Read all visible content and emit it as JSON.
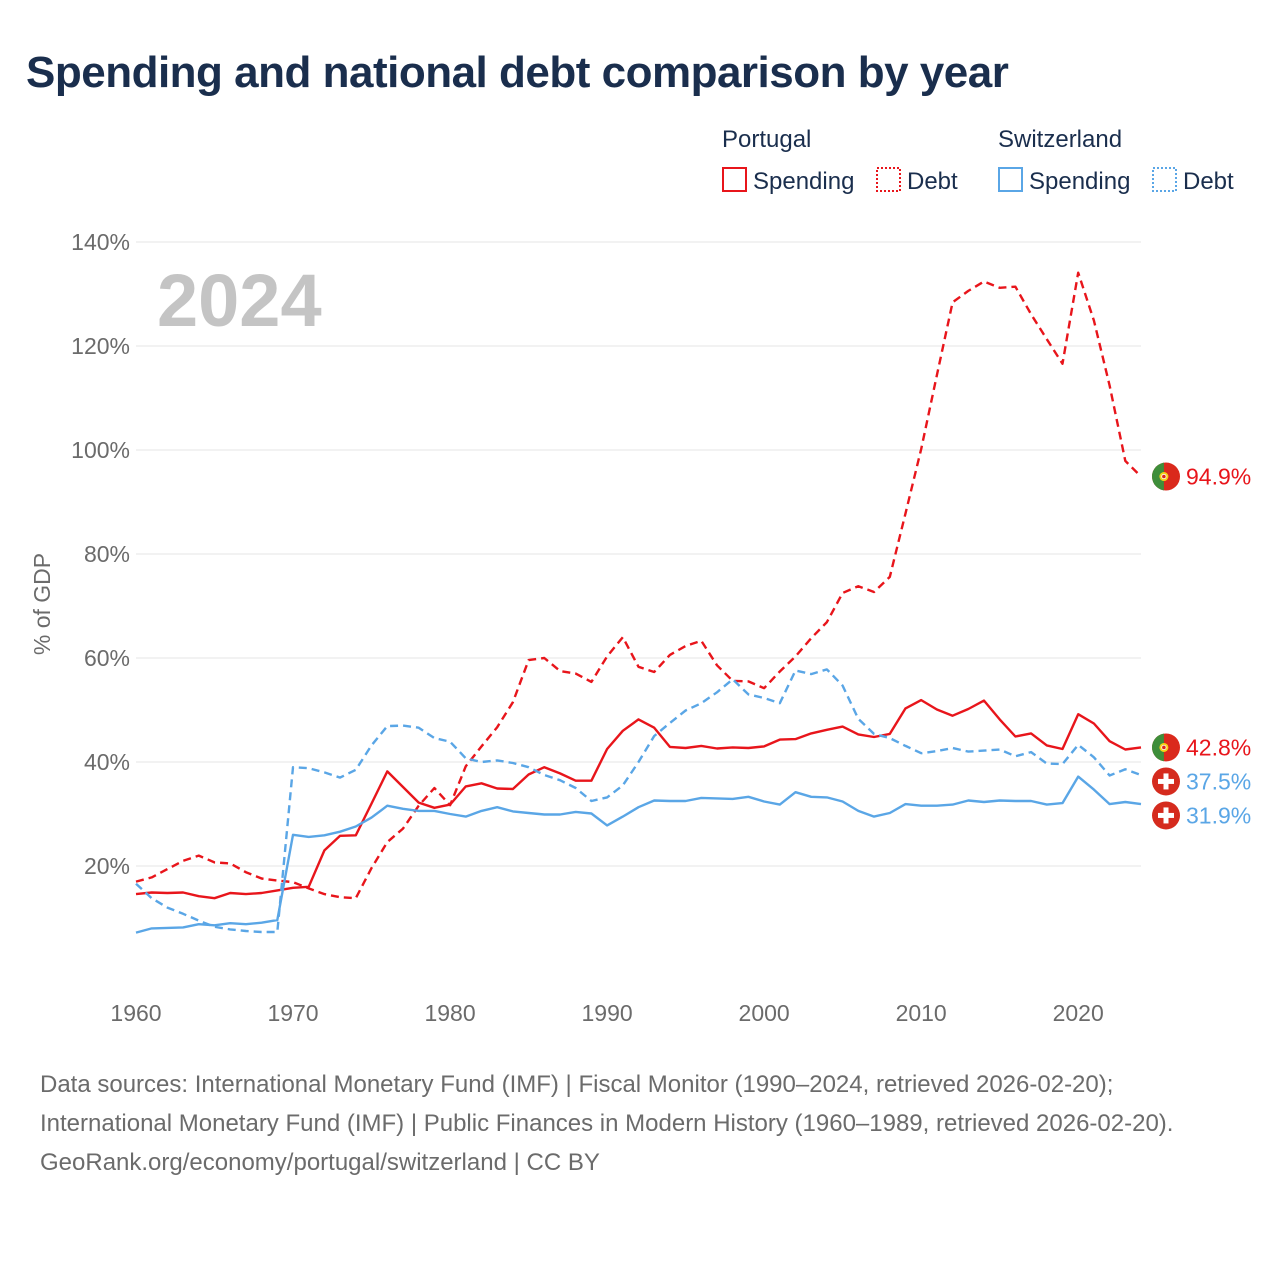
{
  "title": "Spending and national debt comparison by year",
  "year_watermark": "2024",
  "footer": {
    "sources": "Data sources: International Monetary Fund (IMF) | Fiscal Monitor (1990–2024, retrieved 2026-02-20); International Monetary Fund (IMF) | Public Finances in Modern History (1960–1989, retrieved 2026-02-20).",
    "credit": "GeoRank.org/economy/portugal/switzerland | CC BY"
  },
  "colors": {
    "portugal": "#e8151b",
    "switzerland": "#5aa6e6",
    "title": "#1a2e4d",
    "axis_text": "#6b6b6b",
    "grid": "#e6e6e6",
    "watermark": "#c4c4c4"
  },
  "legend": {
    "groups": [
      {
        "name": "Portugal",
        "color": "#e8151b",
        "items": [
          {
            "label": "Spending",
            "style": "solid"
          },
          {
            "label": "Debt",
            "style": "dotted"
          }
        ]
      },
      {
        "name": "Switzerland",
        "color": "#5aa6e6",
        "items": [
          {
            "label": "Spending",
            "style": "solid"
          },
          {
            "label": "Debt",
            "style": "dotted"
          }
        ]
      }
    ]
  },
  "chart_data": {
    "type": "line",
    "title": "Spending and national debt comparison by year",
    "xlabel": "",
    "ylabel": "% of GDP",
    "xlim": [
      1960,
      2024
    ],
    "ylim": [
      0,
      140
    ],
    "x_ticks": [
      1960,
      1970,
      1980,
      1990,
      2000,
      2010,
      2020
    ],
    "y_ticks": [
      20,
      40,
      60,
      80,
      100,
      120,
      140
    ],
    "y_tick_labels": [
      "20%",
      "40%",
      "60%",
      "80%",
      "100%",
      "120%",
      "140%"
    ],
    "grid": true,
    "legend_position": "top-right",
    "series": [
      {
        "name": "Portugal Spending",
        "country": "Portugal",
        "measure": "Spending",
        "style": "solid",
        "color": "#e8151b",
        "end_label": "42.8%",
        "flag": "portugal",
        "x": [
          1960,
          1961,
          1962,
          1963,
          1964,
          1965,
          1966,
          1967,
          1968,
          1969,
          1970,
          1971,
          1972,
          1973,
          1974,
          1975,
          1976,
          1977,
          1978,
          1979,
          1980,
          1981,
          1982,
          1983,
          1984,
          1985,
          1986,
          1987,
          1988,
          1989,
          1990,
          1991,
          1992,
          1993,
          1994,
          1995,
          1996,
          1997,
          1998,
          1999,
          2000,
          2001,
          2002,
          2003,
          2004,
          2005,
          2006,
          2007,
          2008,
          2009,
          2010,
          2011,
          2012,
          2013,
          2014,
          2015,
          2016,
          2017,
          2018,
          2019,
          2020,
          2021,
          2022,
          2023,
          2024
        ],
        "values": [
          14.6,
          14.9,
          14.8,
          14.9,
          14.2,
          13.8,
          14.8,
          14.6,
          14.8,
          15.3,
          15.8,
          16.0,
          23.0,
          25.8,
          25.9,
          32.0,
          38.2,
          35.2,
          32.2,
          31.2,
          31.8,
          35.3,
          35.9,
          34.9,
          34.8,
          37.6,
          39.0,
          37.8,
          36.4,
          36.4,
          42.5,
          46.0,
          48.2,
          46.6,
          42.9,
          42.7,
          43.1,
          42.6,
          42.8,
          42.7,
          43.0,
          44.3,
          44.4,
          45.5,
          46.2,
          46.8,
          45.3,
          44.8,
          45.4,
          50.3,
          51.9,
          50.1,
          48.9,
          50.2,
          51.8,
          48.2,
          44.9,
          45.5,
          43.2,
          42.5,
          49.2,
          47.4,
          44.0,
          42.4,
          42.8
        ]
      },
      {
        "name": "Portugal Debt",
        "country": "Portugal",
        "measure": "Debt",
        "style": "dashed",
        "color": "#e8151b",
        "end_label": "94.9%",
        "flag": "portugal",
        "x": [
          1960,
          1961,
          1962,
          1963,
          1964,
          1965,
          1966,
          1967,
          1968,
          1969,
          1970,
          1971,
          1972,
          1973,
          1974,
          1975,
          1976,
          1977,
          1978,
          1979,
          1980,
          1981,
          1982,
          1983,
          1984,
          1985,
          1986,
          1987,
          1988,
          1989,
          1990,
          1991,
          1992,
          1993,
          1994,
          1995,
          1996,
          1997,
          1998,
          1999,
          2000,
          2001,
          2002,
          2003,
          2004,
          2005,
          2006,
          2007,
          2008,
          2009,
          2010,
          2011,
          2012,
          2013,
          2014,
          2015,
          2016,
          2017,
          2018,
          2019,
          2020,
          2021,
          2022,
          2023,
          2024
        ],
        "values": [
          17.0,
          17.8,
          19.4,
          21.0,
          22.0,
          20.7,
          20.5,
          18.8,
          17.6,
          17.2,
          16.9,
          15.7,
          14.6,
          14.0,
          13.8,
          19.6,
          24.6,
          27.2,
          31.6,
          35.0,
          31.7,
          39.2,
          43.0,
          46.7,
          51.5,
          59.6,
          60.0,
          57.5,
          57.0,
          55.4,
          60.3,
          64.0,
          58.3,
          57.3,
          60.6,
          62.3,
          63.3,
          58.6,
          55.6,
          55.5,
          54.2,
          57.4,
          60.3,
          63.8,
          66.9,
          72.5,
          73.8,
          72.7,
          75.6,
          87.8,
          100.2,
          114.4,
          128.4,
          130.6,
          132.4,
          131.2,
          131.4,
          126.1,
          121.3,
          116.6,
          134.1,
          124.9,
          112.4,
          97.9,
          94.9
        ]
      },
      {
        "name": "Switzerland Spending",
        "country": "Switzerland",
        "measure": "Spending",
        "style": "solid",
        "color": "#5aa6e6",
        "end_label": "31.9%",
        "flag": "switzerland",
        "x": [
          1960,
          1961,
          1962,
          1963,
          1964,
          1965,
          1966,
          1967,
          1968,
          1969,
          1970,
          1971,
          1972,
          1973,
          1974,
          1975,
          1976,
          1977,
          1978,
          1979,
          1980,
          1981,
          1982,
          1983,
          1984,
          1985,
          1986,
          1987,
          1988,
          1989,
          1990,
          1991,
          1992,
          1993,
          1994,
          1995,
          1996,
          1997,
          1998,
          1999,
          2000,
          2001,
          2002,
          2003,
          2004,
          2005,
          2006,
          2007,
          2008,
          2009,
          2010,
          2011,
          2012,
          2013,
          2014,
          2015,
          2016,
          2017,
          2018,
          2019,
          2020,
          2021,
          2022,
          2023,
          2024
        ],
        "values": [
          7.2,
          8.0,
          8.1,
          8.2,
          8.8,
          8.6,
          9.0,
          8.8,
          9.1,
          9.6,
          26.0,
          25.6,
          25.9,
          26.6,
          27.6,
          29.3,
          31.6,
          31.0,
          30.6,
          30.6,
          30.0,
          29.5,
          30.6,
          31.3,
          30.5,
          30.2,
          29.9,
          29.9,
          30.4,
          30.1,
          27.8,
          29.5,
          31.3,
          32.6,
          32.5,
          32.5,
          33.1,
          33.0,
          32.9,
          33.3,
          32.4,
          31.8,
          34.2,
          33.3,
          33.2,
          32.4,
          30.6,
          29.5,
          30.2,
          31.9,
          31.6,
          31.6,
          31.8,
          32.6,
          32.3,
          32.6,
          32.5,
          32.5,
          31.8,
          32.1,
          37.2,
          34.7,
          31.9,
          32.3,
          31.9
        ]
      },
      {
        "name": "Switzerland Debt",
        "country": "Switzerland",
        "measure": "Debt",
        "style": "dashed",
        "color": "#5aa6e6",
        "end_label": "37.5%",
        "flag": "switzerland",
        "x": [
          1960,
          1961,
          1962,
          1963,
          1964,
          1965,
          1966,
          1967,
          1968,
          1969,
          1970,
          1971,
          1972,
          1973,
          1974,
          1975,
          1976,
          1977,
          1978,
          1979,
          1980,
          1981,
          1982,
          1983,
          1984,
          1985,
          1986,
          1987,
          1988,
          1989,
          1990,
          1991,
          1992,
          1993,
          1994,
          1995,
          1996,
          1997,
          1998,
          1999,
          2000,
          2001,
          2002,
          2003,
          2004,
          2005,
          2006,
          2007,
          2008,
          2009,
          2010,
          2011,
          2012,
          2013,
          2014,
          2015,
          2016,
          2017,
          2018,
          2019,
          2020,
          2021,
          2022,
          2023,
          2024
        ],
        "values": [
          16.6,
          13.8,
          12.0,
          10.8,
          9.5,
          8.3,
          7.8,
          7.5,
          7.3,
          7.3,
          39.0,
          38.8,
          38.0,
          37.0,
          38.5,
          43.2,
          46.9,
          47.0,
          46.6,
          44.6,
          43.9,
          40.7,
          40.0,
          40.3,
          39.8,
          39.0,
          37.5,
          36.5,
          35.0,
          32.5,
          33.2,
          35.5,
          40.0,
          45.0,
          47.5,
          49.9,
          51.3,
          53.4,
          55.9,
          53.0,
          52.3,
          51.3,
          57.6,
          56.9,
          57.8,
          54.7,
          48.3,
          45.4,
          44.6,
          43.1,
          41.7,
          42.1,
          42.7,
          42.0,
          42.2,
          42.4,
          41.1,
          41.9,
          39.7,
          39.6,
          43.3,
          40.9,
          37.4,
          38.6,
          37.5
        ]
      }
    ]
  }
}
